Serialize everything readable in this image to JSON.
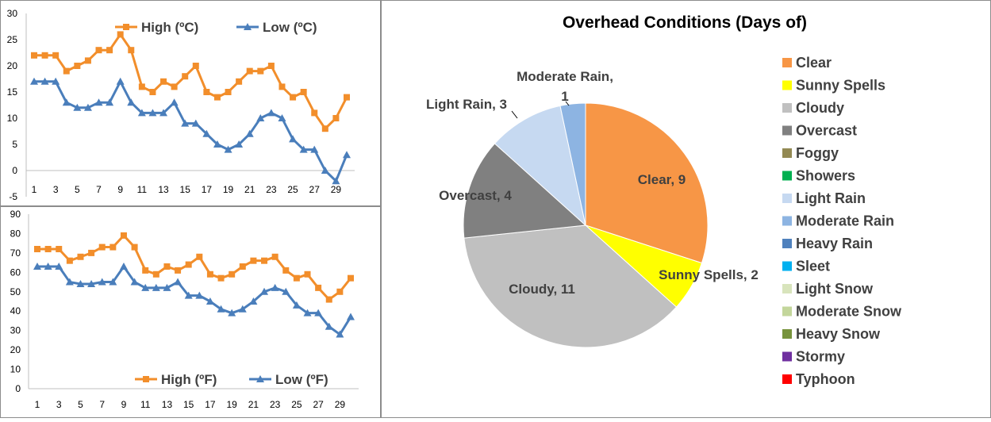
{
  "chart_data": [
    {
      "type": "line",
      "title": "",
      "x": [
        1,
        2,
        3,
        4,
        5,
        6,
        7,
        8,
        9,
        10,
        11,
        12,
        13,
        14,
        15,
        16,
        17,
        18,
        19,
        20,
        21,
        22,
        23,
        24,
        25,
        26,
        27,
        28,
        29,
        30
      ],
      "xtick_labels": [
        "1",
        "3",
        "5",
        "7",
        "9",
        "11",
        "13",
        "15",
        "17",
        "19",
        "21",
        "23",
        "25",
        "27",
        "29"
      ],
      "ytick_labels": [
        "-5",
        "0",
        "5",
        "10",
        "15",
        "20",
        "25",
        "30"
      ],
      "ylim": [
        -5,
        30
      ],
      "legend_position": "top",
      "series": [
        {
          "name": "High (ºC)",
          "color": "#F28E2B",
          "marker": "square",
          "values": [
            22,
            22,
            22,
            19,
            20,
            21,
            23,
            23,
            26,
            23,
            16,
            15,
            17,
            16,
            18,
            20,
            15,
            14,
            15,
            17,
            19,
            19,
            20,
            16,
            14,
            15,
            11,
            8,
            10,
            14
          ]
        },
        {
          "name": "Low (ºC)",
          "color": "#4A7EBB",
          "marker": "triangle",
          "values": [
            17,
            17,
            17,
            13,
            12,
            12,
            13,
            13,
            17,
            13,
            11,
            11,
            11,
            13,
            9,
            9,
            7,
            5,
            4,
            5,
            7,
            10,
            11,
            10,
            6,
            4,
            4,
            0,
            -2,
            3
          ]
        }
      ]
    },
    {
      "type": "line",
      "title": "",
      "x": [
        1,
        2,
        3,
        4,
        5,
        6,
        7,
        8,
        9,
        10,
        11,
        12,
        13,
        14,
        15,
        16,
        17,
        18,
        19,
        20,
        21,
        22,
        23,
        24,
        25,
        26,
        27,
        28,
        29,
        30
      ],
      "xtick_labels": [
        "1",
        "3",
        "5",
        "7",
        "9",
        "11",
        "13",
        "15",
        "17",
        "19",
        "21",
        "23",
        "25",
        "27",
        "29"
      ],
      "ytick_labels": [
        "0",
        "10",
        "20",
        "30",
        "40",
        "50",
        "60",
        "70",
        "80",
        "90"
      ],
      "ylim": [
        0,
        90
      ],
      "legend_position": "bottom",
      "series": [
        {
          "name": "High (ºF)",
          "color": "#F28E2B",
          "marker": "square",
          "values": [
            72,
            72,
            72,
            66,
            68,
            70,
            73,
            73,
            79,
            73,
            61,
            59,
            63,
            61,
            64,
            68,
            59,
            57,
            59,
            63,
            66,
            66,
            68,
            61,
            57,
            59,
            52,
            46,
            50,
            57
          ]
        },
        {
          "name": "Low (ºF)",
          "color": "#4A7EBB",
          "marker": "triangle",
          "values": [
            63,
            63,
            63,
            55,
            54,
            54,
            55,
            55,
            63,
            55,
            52,
            52,
            52,
            55,
            48,
            48,
            45,
            41,
            39,
            41,
            45,
            50,
            52,
            50,
            43,
            39,
            39,
            32,
            28,
            37
          ]
        }
      ]
    },
    {
      "type": "pie",
      "title": "Overhead Conditions (Days of)",
      "legend_position": "right",
      "slices": [
        {
          "label": "Clear",
          "value": 9,
          "color": "#F79646",
          "data_label": "Clear, 9"
        },
        {
          "label": "Sunny Spells",
          "value": 2,
          "color": "#FFFF00",
          "data_label": "Sunny Spells, 2"
        },
        {
          "label": "Cloudy",
          "value": 11,
          "color": "#C0C0C0",
          "data_label": "Cloudy, 11"
        },
        {
          "label": "Overcast",
          "value": 4,
          "color": "#808080",
          "data_label": "Overcast, 4"
        },
        {
          "label": "Foggy",
          "value": 0,
          "color": "#938953",
          "data_label": ""
        },
        {
          "label": "Showers",
          "value": 0,
          "color": "#00B050",
          "data_label": ""
        },
        {
          "label": "Light Rain",
          "value": 3,
          "color": "#C6D9F1",
          "data_label": "Light Rain, 3"
        },
        {
          "label": "Moderate Rain",
          "value": 1,
          "color": "#8DB4E2",
          "data_label": "Moderate Rain, 1"
        },
        {
          "label": "Heavy Rain",
          "value": 0,
          "color": "#4F81BD",
          "data_label": ""
        },
        {
          "label": "Sleet",
          "value": 0,
          "color": "#00B0F0",
          "data_label": ""
        },
        {
          "label": "Light Snow",
          "value": 0,
          "color": "#D8E4BC",
          "data_label": ""
        },
        {
          "label": "Moderate Snow",
          "value": 0,
          "color": "#C3D69B",
          "data_label": ""
        },
        {
          "label": "Heavy Snow",
          "value": 0,
          "color": "#77933C",
          "data_label": ""
        },
        {
          "label": "Stormy",
          "value": 0,
          "color": "#7030A0",
          "data_label": ""
        },
        {
          "label": "Typhoon",
          "value": 0,
          "color": "#FF0000",
          "data_label": ""
        }
      ]
    }
  ]
}
